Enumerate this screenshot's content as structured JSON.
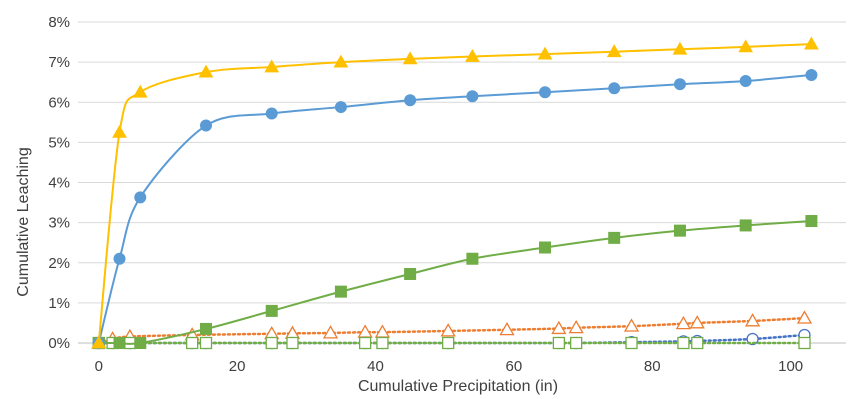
{
  "chart_data": {
    "type": "scatter",
    "title": "",
    "xlabel": "Cumulative Precipitation (in)",
    "ylabel": "Cumulative Leaching",
    "xlim": [
      -3,
      108
    ],
    "ylim": [
      0,
      8
    ],
    "x_ticks": [
      "0",
      "20",
      "40",
      "60",
      "80",
      "100"
    ],
    "x_tick_values": [
      0,
      20,
      40,
      60,
      80,
      100
    ],
    "y_ticks": [
      "0%",
      "1%",
      "2%",
      "3%",
      "4%",
      "5%",
      "6%",
      "7%",
      "8%"
    ],
    "y_tick_values": [
      0,
      1,
      2,
      3,
      4,
      5,
      6,
      7,
      8
    ],
    "grid": "horizontal",
    "legend": "none",
    "series": [
      {
        "color": "#FFC000",
        "marker": "triangle-filled",
        "line": "solid",
        "x": [
          0,
          3,
          6,
          15.5,
          25,
          35,
          45,
          54,
          64.5,
          74.5,
          84,
          93.5,
          103
        ],
        "y": [
          0,
          5.25,
          6.25,
          6.75,
          6.88,
          7.0,
          7.08,
          7.14,
          7.2,
          7.26,
          7.32,
          7.38,
          7.45
        ]
      },
      {
        "color": "#5B9BD5",
        "marker": "circle-filled",
        "line": "solid",
        "x": [
          0,
          3,
          6,
          15.5,
          25,
          35,
          45,
          54,
          64.5,
          74.5,
          84,
          93.5,
          103
        ],
        "y": [
          0,
          2.1,
          3.63,
          5.42,
          5.72,
          5.88,
          6.05,
          6.15,
          6.25,
          6.35,
          6.45,
          6.53,
          6.68
        ]
      },
      {
        "color": "#70AD47",
        "marker": "square-filled",
        "line": "solid",
        "x": [
          0,
          3,
          6,
          15.5,
          25,
          35,
          45,
          54,
          64.5,
          74.5,
          84,
          93.5,
          103
        ],
        "y": [
          0,
          0,
          0,
          0.35,
          0.8,
          1.28,
          1.72,
          2.1,
          2.38,
          2.62,
          2.8,
          2.93,
          3.04
        ]
      },
      {
        "color": "#ED7D31",
        "marker": "triangle-open",
        "line": "dotted",
        "x": [
          0,
          2,
          4.5,
          13.5,
          25,
          28,
          33.5,
          38.5,
          41,
          50.5,
          59,
          66.5,
          69,
          77,
          84.5,
          86.5,
          94.5,
          102
        ],
        "y": [
          0,
          0.1,
          0.16,
          0.2,
          0.23,
          0.24,
          0.25,
          0.27,
          0.27,
          0.3,
          0.33,
          0.36,
          0.38,
          0.42,
          0.48,
          0.5,
          0.55,
          0.62
        ]
      },
      {
        "color": "#4472C4",
        "marker": "circle-open",
        "line": "dotted",
        "x": [
          0,
          2,
          4.5,
          13.5,
          15.5,
          25,
          28,
          38.5,
          41,
          50.5,
          66.5,
          69,
          77,
          84.5,
          86.5,
          94.5,
          102
        ],
        "y": [
          0,
          0,
          0,
          0,
          0,
          0,
          0,
          0,
          0,
          0,
          0,
          0,
          0.02,
          0.04,
          0.05,
          0.1,
          0.2
        ]
      },
      {
        "color": "#70AD47",
        "marker": "square-open",
        "line": "dotted",
        "x": [
          0,
          2,
          4.5,
          13.5,
          15.5,
          25,
          28,
          38.5,
          41,
          50.5,
          66.5,
          69,
          77,
          84.5,
          86.5,
          102
        ],
        "y": [
          0,
          0,
          0,
          0,
          0,
          0,
          0,
          0,
          0,
          0,
          0,
          0,
          0,
          0,
          0,
          0
        ]
      }
    ]
  }
}
